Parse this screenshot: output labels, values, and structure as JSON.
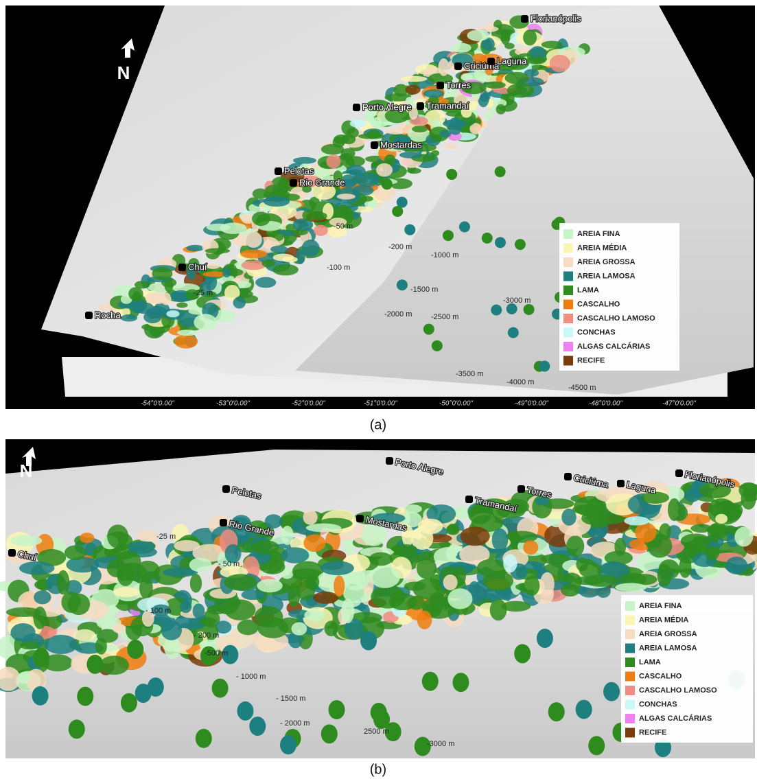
{
  "panels": [
    {
      "caption": "(a)",
      "north": "N",
      "cities": [
        "Florianópolis",
        "Criciúma",
        "Laguna",
        "Torres",
        "Porto Alegre",
        "Tramandaí",
        "Mostardas",
        "Pelotas",
        "Rio Grande",
        "Chuí",
        "Rocha"
      ],
      "contours": [
        "-25 m",
        "-50 m",
        "-100 m",
        "-200 m",
        "-1000 m",
        "-1500 m",
        "-2000 m",
        "-2500 m",
        "-3000 m",
        "-3500 m",
        "-4000 m",
        "-4500 m"
      ],
      "longitudes": [
        "-54°0'0.00\"",
        "-53°0'0.00\"",
        "-52°0'0.00\"",
        "-51°0'0.00\"",
        "-50°0'0.00\"",
        "-49°0'0.00\"",
        "-48°0'0.00\"",
        "-47°0'0.00\""
      ],
      "legend": [
        {
          "name": "AREIA FINA",
          "color": "#c8f5c8"
        },
        {
          "name": "AREIA MÉDIA",
          "color": "#fbf5b4"
        },
        {
          "name": "AREIA GROSSA",
          "color": "#f6dcc2"
        },
        {
          "name": "AREIA LAMOSA",
          "color": "#1e7f80"
        },
        {
          "name": "LAMA",
          "color": "#2e8b1e"
        },
        {
          "name": "CASCALHO",
          "color": "#f07d10"
        },
        {
          "name": "CASCALHO LAMOSO",
          "color": "#f08c80"
        },
        {
          "name": "CONCHAS",
          "color": "#c8f8f8"
        },
        {
          "name": "ALGAS CALCÁRIAS",
          "color": "#f080f0"
        },
        {
          "name": "RECIFE",
          "color": "#7a3c0a"
        }
      ]
    },
    {
      "caption": "(b)",
      "north": "N",
      "cities": [
        "Chuí",
        "Pelotas",
        "Rio Grande",
        "Porto Alegre",
        "Mostardas",
        "Tramandaí",
        "Torres",
        "Criciúma",
        "Laguna",
        "Florianópolis"
      ],
      "contours": [
        "-25 m",
        "- 50 m",
        "- 100 m",
        "- 200 m",
        "-500 m",
        "- 1000 m",
        "- 1500 m",
        "- 2000 m",
        "2500 m",
        "-3000 m"
      ],
      "legend": [
        {
          "name": "AREIA FINA",
          "color": "#c8f5c8"
        },
        {
          "name": "AREIA MÉDIA",
          "color": "#fbf5b4"
        },
        {
          "name": "AREIA GROSSA",
          "color": "#f6dcc2"
        },
        {
          "name": "AREIA LAMOSA",
          "color": "#1e7f80"
        },
        {
          "name": "LAMA",
          "color": "#2e8b1e"
        },
        {
          "name": "CASCALHO",
          "color": "#f07d10"
        },
        {
          "name": "CASCALHO LAMOSO",
          "color": "#f08c80"
        },
        {
          "name": "CONCHAS",
          "color": "#c8f8f8"
        },
        {
          "name": "ALGAS CALCÁRIAS",
          "color": "#f080f0"
        },
        {
          "name": "RECIFE",
          "color": "#7a3c0a"
        }
      ]
    }
  ]
}
